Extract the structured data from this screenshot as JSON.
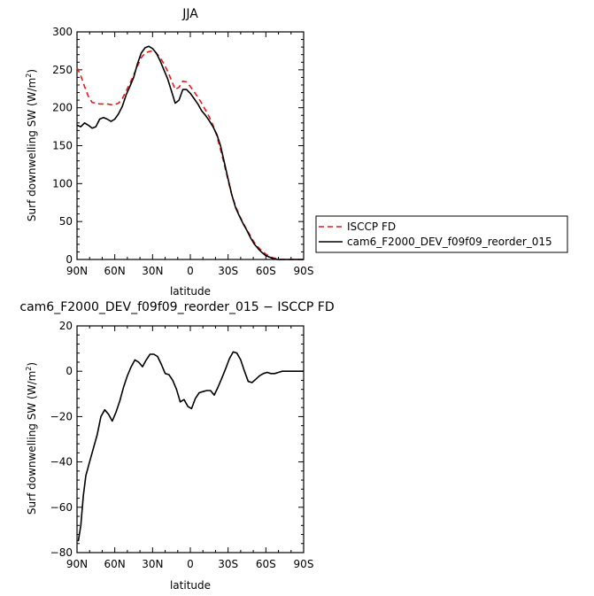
{
  "chart_data": [
    {
      "type": "line",
      "title": "JJA",
      "xlabel": "latitude",
      "ylabel": "Surf downwelling SW (W/m²)",
      "ylabel_main": "Surf downwelling SW (W/m",
      "ylabel_sup": "2",
      "ylabel_end": ")",
      "xlim": [
        90,
        -90
      ],
      "ylim": [
        0,
        300
      ],
      "xticks": [
        90,
        60,
        30,
        0,
        -30,
        -60,
        -90
      ],
      "xtick_labels": [
        "90N",
        "60N",
        "30N",
        "0",
        "30S",
        "60S",
        "90S"
      ],
      "yticks": [
        0,
        50,
        100,
        150,
        200,
        250,
        300
      ],
      "ytick_labels": [
        "0",
        "50",
        "100",
        "150",
        "200",
        "250",
        "300"
      ],
      "legend": "right",
      "series": [
        {
          "name": "ISCCP FD",
          "color": "#e41a1c",
          "dash": "dashed",
          "x": [
            90,
            87,
            84,
            81,
            78,
            75,
            72,
            69,
            66,
            63,
            60,
            57,
            54,
            51,
            48,
            45,
            42,
            39,
            36,
            33,
            30,
            27,
            24,
            21,
            18,
            15,
            12,
            9,
            6,
            3,
            0,
            -3,
            -6,
            -9,
            -12,
            -15,
            -18,
            -21,
            -24,
            -27,
            -30,
            -33,
            -36,
            -39,
            -42,
            -45,
            -48,
            -51,
            -54,
            -57,
            -60,
            -63,
            -66,
            -69,
            -72,
            -75,
            -78,
            -81,
            -84,
            -87,
            -90
          ],
          "y": [
            253,
            242,
            228,
            215,
            207,
            206,
            205,
            205,
            205,
            204,
            204,
            206,
            212,
            222,
            232,
            243,
            255,
            266,
            272,
            274,
            275,
            272,
            266,
            258,
            248,
            236,
            224,
            227,
            235,
            234,
            228,
            221,
            214,
            206,
            197,
            188,
            177,
            163,
            145,
            125,
            104,
            85,
            70,
            58,
            48,
            39,
            30,
            22,
            16,
            11,
            7,
            4,
            2,
            1,
            0,
            0,
            0,
            0,
            0,
            0,
            0
          ]
        },
        {
          "name": "cam6_F2000_DEV_f09f09_reorder_015",
          "color": "#000000",
          "dash": "solid",
          "x": [
            90,
            87,
            84,
            81,
            78,
            75,
            72,
            69,
            66,
            63,
            60,
            57,
            54,
            51,
            48,
            45,
            42,
            39,
            36,
            33,
            30,
            27,
            24,
            21,
            18,
            15,
            12,
            9,
            6,
            3,
            0,
            -3,
            -6,
            -9,
            -12,
            -15,
            -18,
            -21,
            -24,
            -27,
            -30,
            -33,
            -36,
            -39,
            -42,
            -45,
            -48,
            -51,
            -54,
            -57,
            -60,
            -63,
            -66,
            -69,
            -72,
            -75,
            -78,
            -81,
            -84,
            -87,
            -90
          ],
          "y": [
            177,
            175,
            180,
            177,
            173,
            175,
            185,
            187,
            185,
            182,
            185,
            192,
            202,
            217,
            228,
            240,
            258,
            272,
            279,
            281,
            278,
            272,
            262,
            250,
            238,
            222,
            206,
            210,
            224,
            224,
            219,
            212,
            205,
            196,
            190,
            183,
            175,
            165,
            150,
            128,
            106,
            85,
            68,
            57,
            47,
            38,
            28,
            20,
            14,
            9,
            5,
            3,
            1,
            0,
            0,
            0,
            0,
            0,
            0,
            0,
            0
          ]
        }
      ]
    },
    {
      "type": "line",
      "title": "cam6_F2000_DEV_f09f09_reorder_015 − ISCCP FD",
      "xlabel": "latitude",
      "ylabel": "Surf downwelling SW (W/m²)",
      "ylabel_main": "Surf downwelling SW (W/m",
      "ylabel_sup": "2",
      "ylabel_end": ")",
      "xlim": [
        90,
        -90
      ],
      "ylim": [
        -80,
        20
      ],
      "xticks": [
        90,
        60,
        30,
        0,
        -30,
        -60,
        -90
      ],
      "xtick_labels": [
        "90N",
        "60N",
        "30N",
        "0",
        "30S",
        "60S",
        "90S"
      ],
      "yticks": [
        -80,
        -60,
        -40,
        -20,
        0,
        20
      ],
      "ytick_labels": [
        "−80",
        "−60",
        "−40",
        "−20",
        "0",
        "20"
      ],
      "series": [
        {
          "color": "#000000",
          "dash": "solid",
          "x": [
            89,
            87,
            85,
            83,
            80,
            77,
            74,
            71,
            68,
            65,
            62,
            59,
            56,
            53,
            50,
            47,
            44,
            41,
            38,
            35,
            32,
            29,
            26,
            23,
            20,
            17,
            14,
            11,
            8,
            5,
            2,
            -1,
            -4,
            -7,
            -10,
            -13,
            -16,
            -19,
            -22,
            -25,
            -28,
            -31,
            -34,
            -37,
            -40,
            -43,
            -46,
            -49,
            -52,
            -55,
            -58,
            -61,
            -64,
            -67,
            -70,
            -73,
            -76,
            -79,
            -82,
            -85,
            -88,
            -90
          ],
          "y": [
            -75,
            -68,
            -55,
            -46,
            -40,
            -34,
            -28,
            -20,
            -17,
            -19,
            -22,
            -18,
            -13,
            -7,
            -2,
            2,
            5,
            4,
            2,
            5,
            7.5,
            7.5,
            6.5,
            3,
            -1,
            -1.5,
            -4,
            -8,
            -13.5,
            -12.5,
            -15.5,
            -16.5,
            -12,
            -9.5,
            -9,
            -8.5,
            -8.5,
            -10.5,
            -7,
            -3,
            1,
            5.5,
            8.5,
            8,
            5,
            0,
            -4.5,
            -5,
            -3.5,
            -2,
            -1,
            -0.5,
            -1,
            -1,
            -0.5,
            0,
            0,
            0,
            0,
            0,
            0,
            0
          ]
        }
      ]
    }
  ]
}
